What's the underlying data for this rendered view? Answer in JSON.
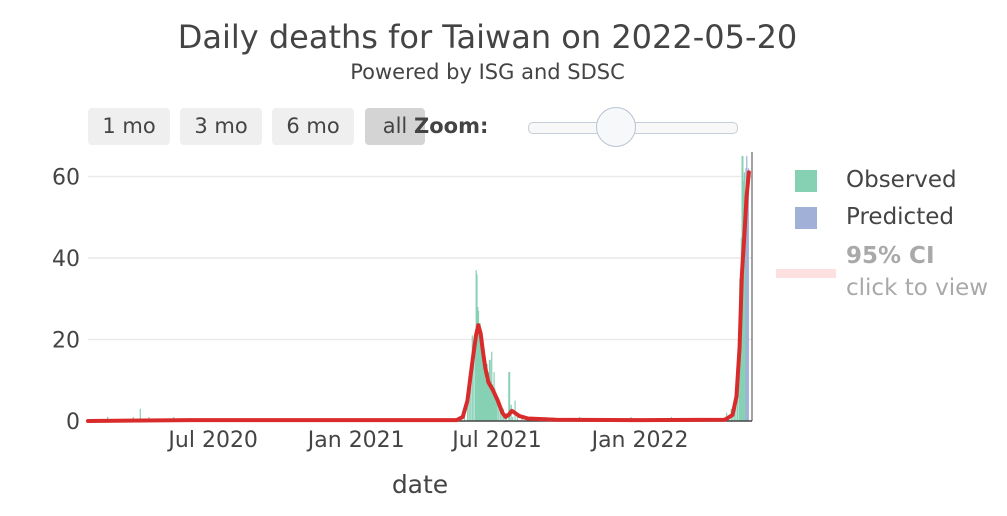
{
  "header": {
    "title": "Daily deaths for Taiwan on 2022-05-20",
    "subtitle": "Powered by ISG and SDSC"
  },
  "controls": {
    "range_buttons": [
      "1 mo",
      "3 mo",
      "6 mo",
      "all"
    ],
    "active_range": "all",
    "zoom_label": "Zoom:",
    "zoom_level": 0.33
  },
  "legend": {
    "observed": "Observed",
    "predicted": "Predicted",
    "ci_title": "95% CI",
    "ci_subtitle": "click to view"
  },
  "colors": {
    "observed": "#86d0b4",
    "predicted": "#a0b0d6",
    "trend": "#d92b2b",
    "grid": "#e9e9e9",
    "ci": "#fde0e0"
  },
  "chart_data": {
    "type": "bar",
    "title": "Daily deaths for Taiwan on 2022-05-20",
    "subtitle": "Powered by ISG and SDSC",
    "xlabel": "date",
    "ylabel": "",
    "ylim": [
      0,
      66
    ],
    "xlim": [
      "2020-01-22",
      "2022-05-25"
    ],
    "yticks": [
      0,
      20,
      40,
      60
    ],
    "xticks": [
      {
        "date": "2020-07-01",
        "label": "Jul 2020"
      },
      {
        "date": "2021-01-01",
        "label": "Jan 2021"
      },
      {
        "date": "2021-07-01",
        "label": "Jul 2021"
      },
      {
        "date": "2022-01-01",
        "label": "Jan 2022"
      }
    ],
    "grid": true,
    "legend_position": "right",
    "series": [
      {
        "name": "Observed",
        "kind": "bar",
        "points": [
          [
            "2020-02-16",
            1
          ],
          [
            "2020-03-20",
            1
          ],
          [
            "2020-03-29",
            3
          ],
          [
            "2020-04-09",
            1
          ],
          [
            "2020-05-11",
            1
          ],
          [
            "2021-05-20",
            2
          ],
          [
            "2021-05-24",
            5
          ],
          [
            "2021-05-26",
            8
          ],
          [
            "2021-05-28",
            13
          ],
          [
            "2021-05-30",
            21
          ],
          [
            "2021-06-01",
            16
          ],
          [
            "2021-06-03",
            20
          ],
          [
            "2021-06-04",
            37
          ],
          [
            "2021-06-05",
            36
          ],
          [
            "2021-06-06",
            28
          ],
          [
            "2021-06-07",
            27
          ],
          [
            "2021-06-08",
            24
          ],
          [
            "2021-06-09",
            24
          ],
          [
            "2021-06-10",
            21
          ],
          [
            "2021-06-11",
            20
          ],
          [
            "2021-06-12",
            18
          ],
          [
            "2021-06-13",
            19
          ],
          [
            "2021-06-14",
            15
          ],
          [
            "2021-06-15",
            15
          ],
          [
            "2021-06-16",
            10
          ],
          [
            "2021-06-17",
            13
          ],
          [
            "2021-06-18",
            14
          ],
          [
            "2021-06-19",
            11
          ],
          [
            "2021-06-20",
            12
          ],
          [
            "2021-06-21",
            15
          ],
          [
            "2021-06-22",
            15
          ],
          [
            "2021-06-23",
            10
          ],
          [
            "2021-06-24",
            17
          ],
          [
            "2021-06-25",
            9
          ],
          [
            "2021-06-26",
            7
          ],
          [
            "2021-06-27",
            12
          ],
          [
            "2021-06-28",
            8
          ],
          [
            "2021-06-29",
            6
          ],
          [
            "2021-06-30",
            5
          ],
          [
            "2021-07-01",
            6
          ],
          [
            "2021-07-03",
            4
          ],
          [
            "2021-07-05",
            3
          ],
          [
            "2021-07-07",
            2
          ],
          [
            "2021-07-09",
            3
          ],
          [
            "2021-07-11",
            1
          ],
          [
            "2021-07-13",
            2
          ],
          [
            "2021-07-16",
            12
          ],
          [
            "2021-07-17",
            12
          ],
          [
            "2021-07-19",
            4
          ],
          [
            "2021-07-21",
            1
          ],
          [
            "2021-07-24",
            5
          ],
          [
            "2021-07-27",
            1
          ],
          [
            "2021-08-02",
            1
          ],
          [
            "2021-08-09",
            1
          ],
          [
            "2021-08-16",
            1
          ],
          [
            "2021-09-01",
            1
          ],
          [
            "2021-10-15",
            1
          ],
          [
            "2021-12-20",
            1
          ],
          [
            "2022-02-10",
            1
          ],
          [
            "2022-04-20",
            1
          ],
          [
            "2022-04-22",
            2
          ],
          [
            "2022-04-25",
            1
          ],
          [
            "2022-04-28",
            3
          ],
          [
            "2022-04-30",
            2
          ],
          [
            "2022-05-02",
            5
          ],
          [
            "2022-05-04",
            5
          ],
          [
            "2022-05-06",
            12
          ],
          [
            "2022-05-08",
            18
          ],
          [
            "2022-05-09",
            35
          ],
          [
            "2022-05-10",
            30
          ],
          [
            "2022-05-11",
            45
          ],
          [
            "2022-05-12",
            65
          ],
          [
            "2022-05-13",
            65
          ],
          [
            "2022-05-14",
            59
          ],
          [
            "2022-05-15",
            61
          ],
          [
            "2022-05-16",
            50
          ]
        ]
      },
      {
        "name": "Predicted",
        "kind": "bar",
        "points": [
          [
            "2022-05-17",
            62
          ],
          [
            "2022-05-18",
            65
          ],
          [
            "2022-05-19",
            58
          ],
          [
            "2022-05-20",
            62
          ]
        ]
      },
      {
        "name": "trend",
        "kind": "line",
        "points": [
          [
            "2020-01-22",
            0
          ],
          [
            "2020-06-01",
            0.2
          ],
          [
            "2021-01-01",
            0.2
          ],
          [
            "2021-05-10",
            0.2
          ],
          [
            "2021-05-18",
            1
          ],
          [
            "2021-05-24",
            5
          ],
          [
            "2021-05-30",
            14
          ],
          [
            "2021-06-04",
            21
          ],
          [
            "2021-06-07",
            23.5
          ],
          [
            "2021-06-10",
            21.5
          ],
          [
            "2021-06-13",
            17
          ],
          [
            "2021-06-16",
            13
          ],
          [
            "2021-06-20",
            9.5
          ],
          [
            "2021-06-26",
            7.5
          ],
          [
            "2021-07-02",
            5
          ],
          [
            "2021-07-08",
            2
          ],
          [
            "2021-07-12",
            1
          ],
          [
            "2021-07-16",
            1.5
          ],
          [
            "2021-07-20",
            2.5
          ],
          [
            "2021-07-24",
            2
          ],
          [
            "2021-07-30",
            1.2
          ],
          [
            "2021-08-10",
            0.6
          ],
          [
            "2021-09-15",
            0.3
          ],
          [
            "2022-01-01",
            0.2
          ],
          [
            "2022-04-20",
            0.3
          ],
          [
            "2022-04-30",
            1.5
          ],
          [
            "2022-05-05",
            6
          ],
          [
            "2022-05-09",
            18
          ],
          [
            "2022-05-12",
            36
          ],
          [
            "2022-05-15",
            45
          ],
          [
            "2022-05-18",
            55
          ],
          [
            "2022-05-21",
            61
          ]
        ]
      }
    ]
  }
}
